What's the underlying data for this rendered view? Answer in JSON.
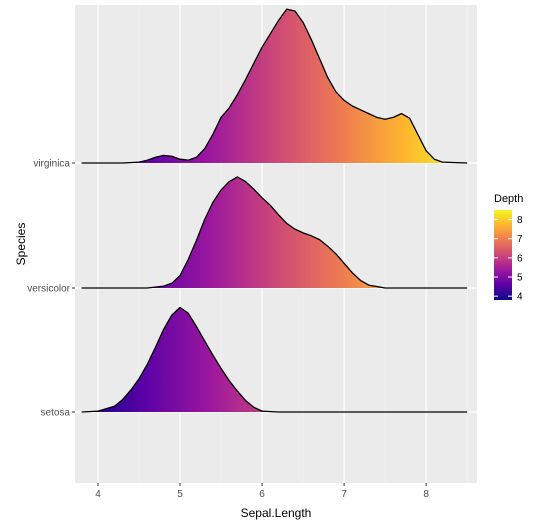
{
  "chart_data": {
    "type": "area",
    "subtype": "ridgeline",
    "title": "",
    "xlabel": "Sepal.Length",
    "ylabel": "Species",
    "xlim": [
      3.72,
      8.62
    ],
    "x_ticks": [
      4,
      5,
      6,
      7,
      8
    ],
    "categories": [
      "setosa",
      "versicolor",
      "virginica"
    ],
    "grid": true,
    "fill_gradient": {
      "variable": "Depth",
      "mapped_to": "x",
      "palette": "plasma",
      "range": [
        3.8,
        8.5
      ]
    },
    "legend": {
      "title": "Depth",
      "position": "right",
      "ticks": [
        4,
        5,
        6,
        7,
        8
      ],
      "colors": [
        "#0d0887",
        "#5c01a6",
        "#9c179e",
        "#cc4778",
        "#ed7953",
        "#fdb42f",
        "#f0f921"
      ]
    },
    "series": [
      {
        "name": "setosa",
        "x": [
          3.8,
          4.0,
          4.2,
          4.3,
          4.4,
          4.5,
          4.6,
          4.7,
          4.8,
          4.9,
          5.0,
          5.1,
          5.2,
          5.3,
          5.4,
          5.5,
          5.6,
          5.7,
          5.8,
          5.9,
          6.0,
          6.2,
          6.5,
          7.0,
          7.5,
          8.0,
          8.5
        ],
        "density": [
          0.0,
          0.01,
          0.06,
          0.13,
          0.23,
          0.35,
          0.5,
          0.68,
          0.87,
          1.02,
          1.1,
          1.04,
          0.9,
          0.75,
          0.6,
          0.46,
          0.33,
          0.22,
          0.12,
          0.05,
          0.01,
          0.0,
          0.0,
          0.0,
          0.0,
          0.0,
          0.0
        ]
      },
      {
        "name": "versicolor",
        "x": [
          3.8,
          4.3,
          4.6,
          4.8,
          4.9,
          5.0,
          5.1,
          5.2,
          5.3,
          5.4,
          5.5,
          5.6,
          5.7,
          5.8,
          5.9,
          6.0,
          6.1,
          6.2,
          6.3,
          6.4,
          6.5,
          6.6,
          6.7,
          6.8,
          6.9,
          7.0,
          7.1,
          7.2,
          7.3,
          7.5,
          8.0,
          8.5
        ],
        "density": [
          0.0,
          0.0,
          0.0,
          0.02,
          0.05,
          0.13,
          0.3,
          0.5,
          0.72,
          0.9,
          1.03,
          1.12,
          1.17,
          1.12,
          1.04,
          0.95,
          0.87,
          0.77,
          0.68,
          0.62,
          0.58,
          0.55,
          0.51,
          0.44,
          0.36,
          0.26,
          0.16,
          0.08,
          0.03,
          0.0,
          0.0,
          0.0
        ]
      },
      {
        "name": "virginica",
        "x": [
          3.8,
          4.3,
          4.5,
          4.6,
          4.7,
          4.8,
          4.9,
          5.0,
          5.1,
          5.2,
          5.3,
          5.4,
          5.5,
          5.6,
          5.7,
          5.8,
          5.9,
          6.0,
          6.1,
          6.2,
          6.3,
          6.4,
          6.5,
          6.6,
          6.7,
          6.8,
          6.9,
          7.0,
          7.1,
          7.2,
          7.3,
          7.4,
          7.5,
          7.6,
          7.7,
          7.8,
          7.9,
          8.0,
          8.1,
          8.2,
          8.5
        ],
        "density": [
          0.0,
          0.0,
          0.01,
          0.03,
          0.06,
          0.08,
          0.07,
          0.04,
          0.03,
          0.06,
          0.15,
          0.3,
          0.48,
          0.58,
          0.72,
          0.88,
          1.05,
          1.22,
          1.36,
          1.5,
          1.62,
          1.6,
          1.48,
          1.3,
          1.1,
          0.9,
          0.75,
          0.66,
          0.6,
          0.56,
          0.52,
          0.48,
          0.46,
          0.48,
          0.52,
          0.47,
          0.3,
          0.13,
          0.04,
          0.01,
          0.0
        ]
      }
    ]
  }
}
